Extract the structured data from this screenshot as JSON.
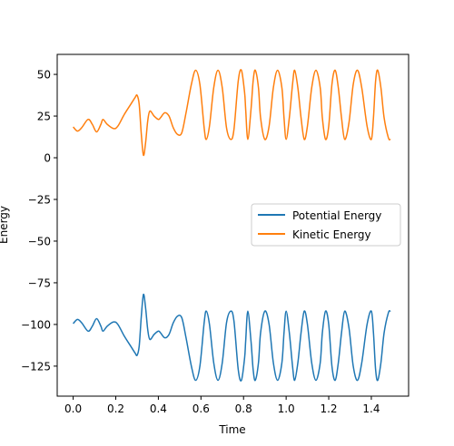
{
  "chart_data": {
    "type": "line",
    "xlabel": "Time",
    "ylabel": "Energy",
    "xlim": [
      -0.075,
      1.575
    ],
    "ylim": [
      -143,
      62
    ],
    "xticks": [
      0.0,
      0.2,
      0.4,
      0.6,
      0.8,
      1.0,
      1.2,
      1.4
    ],
    "xtick_labels": [
      "0.0",
      "0.2",
      "0.4",
      "0.6",
      "0.8",
      "1.0",
      "1.2",
      "1.4"
    ],
    "yticks": [
      -125,
      -100,
      -75,
      -50,
      -25,
      0,
      25,
      50
    ],
    "ytick_labels": [
      "−125",
      "−100",
      "−75",
      "−50",
      "−25",
      "0",
      "25",
      "50"
    ],
    "grid": false,
    "legend_position": "center-right",
    "series": [
      {
        "name": "Potential Energy",
        "color": "#1f77b4",
        "points": [
          [
            0.0,
            -99.5
          ],
          [
            0.02,
            -97
          ],
          [
            0.04,
            -99
          ],
          [
            0.07,
            -104
          ],
          [
            0.09,
            -101
          ],
          [
            0.11,
            -96.5
          ],
          [
            0.13,
            -101
          ],
          [
            0.14,
            -104
          ],
          [
            0.16,
            -101
          ],
          [
            0.19,
            -98.5
          ],
          [
            0.21,
            -100
          ],
          [
            0.24,
            -107
          ],
          [
            0.27,
            -113
          ],
          [
            0.29,
            -117
          ],
          [
            0.3,
            -118.5
          ],
          [
            0.31,
            -113
          ],
          [
            0.32,
            -95
          ],
          [
            0.33,
            -82
          ],
          [
            0.34,
            -90
          ],
          [
            0.35,
            -103
          ],
          [
            0.36,
            -109
          ],
          [
            0.38,
            -106
          ],
          [
            0.4,
            -104
          ],
          [
            0.41,
            -105
          ],
          [
            0.43,
            -108
          ],
          [
            0.45,
            -106
          ],
          [
            0.47,
            -99
          ],
          [
            0.49,
            -95
          ],
          [
            0.51,
            -96
          ],
          [
            0.53,
            -108
          ],
          [
            0.555,
            -125
          ],
          [
            0.575,
            -133.5
          ],
          [
            0.595,
            -125
          ],
          [
            0.615,
            -99
          ],
          [
            0.625,
            -92
          ],
          [
            0.64,
            -100
          ],
          [
            0.66,
            -123
          ],
          [
            0.68,
            -133.5
          ],
          [
            0.7,
            -123
          ],
          [
            0.72,
            -99
          ],
          [
            0.74,
            -92
          ],
          [
            0.755,
            -98
          ],
          [
            0.775,
            -127
          ],
          [
            0.79,
            -133.5
          ],
          [
            0.805,
            -120
          ],
          [
            0.81,
            -110
          ],
          [
            0.82,
            -92
          ],
          [
            0.835,
            -110
          ],
          [
            0.845,
            -127
          ],
          [
            0.855,
            -133.5
          ],
          [
            0.87,
            -123
          ],
          [
            0.88,
            -105
          ],
          [
            0.9,
            -92
          ],
          [
            0.92,
            -100
          ],
          [
            0.94,
            -123
          ],
          [
            0.96,
            -133.5
          ],
          [
            0.98,
            -123
          ],
          [
            0.99,
            -105
          ],
          [
            1.0,
            -92
          ],
          [
            1.015,
            -105
          ],
          [
            1.03,
            -125
          ],
          [
            1.04,
            -133.5
          ],
          [
            1.055,
            -123
          ],
          [
            1.07,
            -105
          ],
          [
            1.085,
            -92
          ],
          [
            1.1,
            -100
          ],
          [
            1.12,
            -123
          ],
          [
            1.14,
            -133.5
          ],
          [
            1.16,
            -123
          ],
          [
            1.17,
            -105
          ],
          [
            1.185,
            -92
          ],
          [
            1.2,
            -100
          ],
          [
            1.215,
            -125
          ],
          [
            1.23,
            -133.5
          ],
          [
            1.245,
            -123
          ],
          [
            1.26,
            -105
          ],
          [
            1.275,
            -92
          ],
          [
            1.295,
            -102
          ],
          [
            1.315,
            -125
          ],
          [
            1.335,
            -133.5
          ],
          [
            1.355,
            -123
          ],
          [
            1.38,
            -100
          ],
          [
            1.4,
            -92
          ],
          [
            1.41,
            -105
          ],
          [
            1.42,
            -127
          ],
          [
            1.43,
            -133.5
          ],
          [
            1.445,
            -123
          ],
          [
            1.46,
            -105
          ],
          [
            1.48,
            -93
          ],
          [
            1.49,
            -92
          ]
        ]
      },
      {
        "name": "Kinetic Energy",
        "color": "#ff7f0e",
        "points": [
          [
            0.0,
            18.5
          ],
          [
            0.02,
            16
          ],
          [
            0.04,
            18
          ],
          [
            0.07,
            23
          ],
          [
            0.09,
            20
          ],
          [
            0.11,
            15.5
          ],
          [
            0.13,
            20
          ],
          [
            0.14,
            23
          ],
          [
            0.16,
            20
          ],
          [
            0.19,
            17.5
          ],
          [
            0.21,
            19
          ],
          [
            0.24,
            26
          ],
          [
            0.27,
            32
          ],
          [
            0.29,
            36
          ],
          [
            0.3,
            37.5
          ],
          [
            0.31,
            32
          ],
          [
            0.32,
            14
          ],
          [
            0.33,
            1.5
          ],
          [
            0.34,
            9
          ],
          [
            0.35,
            22
          ],
          [
            0.36,
            28
          ],
          [
            0.38,
            25
          ],
          [
            0.4,
            23
          ],
          [
            0.41,
            24
          ],
          [
            0.43,
            27
          ],
          [
            0.45,
            25
          ],
          [
            0.47,
            18
          ],
          [
            0.49,
            14
          ],
          [
            0.51,
            15
          ],
          [
            0.53,
            27
          ],
          [
            0.555,
            44
          ],
          [
            0.575,
            52.5
          ],
          [
            0.595,
            44
          ],
          [
            0.615,
            18
          ],
          [
            0.625,
            11
          ],
          [
            0.64,
            19
          ],
          [
            0.66,
            42
          ],
          [
            0.68,
            52.5
          ],
          [
            0.7,
            42
          ],
          [
            0.72,
            18
          ],
          [
            0.74,
            11
          ],
          [
            0.755,
            17
          ],
          [
            0.775,
            46
          ],
          [
            0.79,
            52.5
          ],
          [
            0.805,
            39
          ],
          [
            0.81,
            29
          ],
          [
            0.82,
            11
          ],
          [
            0.835,
            29
          ],
          [
            0.845,
            46
          ],
          [
            0.855,
            52.5
          ],
          [
            0.87,
            42
          ],
          [
            0.88,
            24
          ],
          [
            0.9,
            11
          ],
          [
            0.92,
            19
          ],
          [
            0.94,
            42
          ],
          [
            0.96,
            52.5
          ],
          [
            0.98,
            42
          ],
          [
            0.99,
            24
          ],
          [
            1.0,
            11
          ],
          [
            1.015,
            24
          ],
          [
            1.03,
            44
          ],
          [
            1.04,
            52.5
          ],
          [
            1.055,
            42
          ],
          [
            1.07,
            24
          ],
          [
            1.085,
            11
          ],
          [
            1.1,
            19
          ],
          [
            1.12,
            42
          ],
          [
            1.14,
            52.5
          ],
          [
            1.16,
            42
          ],
          [
            1.17,
            24
          ],
          [
            1.185,
            11
          ],
          [
            1.2,
            19
          ],
          [
            1.215,
            44
          ],
          [
            1.23,
            52.5
          ],
          [
            1.245,
            42
          ],
          [
            1.26,
            24
          ],
          [
            1.275,
            11
          ],
          [
            1.295,
            21
          ],
          [
            1.315,
            44
          ],
          [
            1.335,
            52.5
          ],
          [
            1.355,
            42
          ],
          [
            1.38,
            19
          ],
          [
            1.4,
            11
          ],
          [
            1.41,
            24
          ],
          [
            1.42,
            46
          ],
          [
            1.43,
            52.5
          ],
          [
            1.445,
            42
          ],
          [
            1.46,
            24
          ],
          [
            1.48,
            12
          ],
          [
            1.49,
            11
          ]
        ]
      }
    ]
  }
}
